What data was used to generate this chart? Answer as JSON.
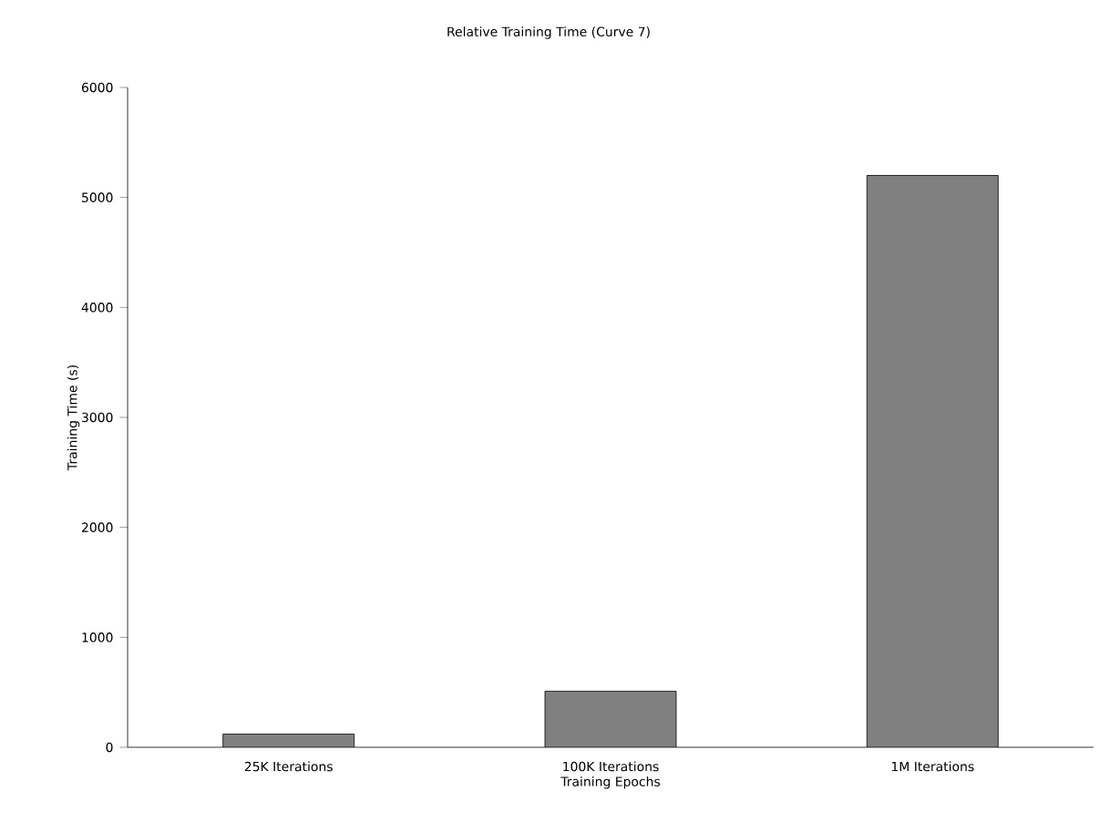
{
  "chart_data": {
    "type": "bar",
    "title": "Relative Training Time (Curve 7)",
    "xlabel": "Training Epochs",
    "ylabel": "Training Time (s)",
    "categories": [
      "25K Iterations",
      "100K Iterations",
      "1M Iterations"
    ],
    "values": [
      120,
      510,
      5200
    ],
    "color": "#808080",
    "ylim": [
      0,
      6000
    ],
    "yticks": [
      0,
      1000,
      2000,
      3000,
      4000,
      5000,
      6000
    ]
  }
}
